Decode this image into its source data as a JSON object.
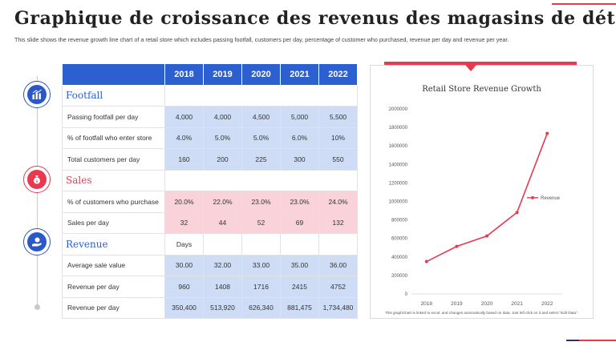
{
  "title": "Graphique de croissance des revenus des magasins de détail",
  "subtitle": "This slide shows the revenue growth line chart of a retail store which includes passing footfall, customers per day, percentage of customer who purchased, revenue per day and revenue per year.",
  "colors": {
    "blue": "#2c5fd0",
    "red": "#e8394f",
    "light_blue": "#cfdcf5",
    "light_pink": "#f9d2da"
  },
  "table": {
    "years": [
      "2018",
      "2019",
      "2020",
      "2021",
      "2022"
    ],
    "sections": [
      {
        "name": "Footfall",
        "color": "blue",
        "icon": "bar-chart-icon",
        "note": "",
        "rows": [
          {
            "label": "Passing footfall per day",
            "values": [
              "4,000",
              "4,000",
              "4,500",
              "5,000",
              "5,500"
            ],
            "shade": "blue"
          },
          {
            "label": "% of footfall who enter store",
            "values": [
              "4.0%",
              "5.0%",
              "5.0%",
              "6.0%",
              "10%"
            ],
            "shade": "blue"
          },
          {
            "label": "Total customers per day",
            "values": [
              "160",
              "200",
              "225",
              "300",
              "550"
            ],
            "shade": "blue"
          }
        ]
      },
      {
        "name": "Sales",
        "color": "red",
        "icon": "money-bag-icon",
        "note": "",
        "rows": [
          {
            "label": "% of customers who purchase",
            "values": [
              "20.0%",
              "22.0%",
              "23.0%",
              "23.0%",
              "24.0%"
            ],
            "shade": "pink"
          },
          {
            "label": "Sales per day",
            "values": [
              "32",
              "44",
              "52",
              "69",
              "132"
            ],
            "shade": "pink"
          }
        ]
      },
      {
        "name": "Revenue",
        "color": "blue",
        "icon": "hand-coin-icon",
        "note": "Days",
        "rows": [
          {
            "label": "Average sale value",
            "values": [
              "30.00",
              "32.00",
              "33.00",
              "35.00",
              "36.00"
            ],
            "shade": "blue"
          },
          {
            "label": "Revenue per day",
            "values": [
              "960",
              "1408",
              "1716",
              "2415",
              "4752"
            ],
            "shade": "blue"
          },
          {
            "label": "Revenue per day",
            "values": [
              "350,400",
              "513,920",
              "626,340",
              "881,475",
              "1,734,480"
            ],
            "shade": "blue"
          }
        ]
      }
    ]
  },
  "chart_data": {
    "type": "line",
    "title": "Retail Store Revenue Growth",
    "x": [
      "2018",
      "2019",
      "2020",
      "2021",
      "2022"
    ],
    "series": [
      {
        "name": "Revenue",
        "values": [
          350400,
          513920,
          626340,
          881475,
          1734480
        ],
        "color": "#e8394f"
      }
    ],
    "ylim": [
      0,
      2000000
    ],
    "yticks": [
      "0",
      "200000",
      "400000",
      "600000",
      "800000",
      "1000000",
      "1200000",
      "1400000",
      "1600000",
      "1800000",
      "2000000"
    ],
    "grid": false,
    "legend": "right"
  },
  "chart_note": "This graph/chart is linked to excel, and changes automatically based on data. Just left click on it and select \"Edit Data\"."
}
